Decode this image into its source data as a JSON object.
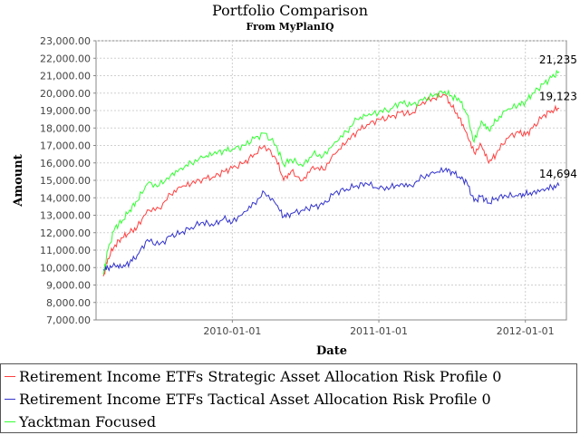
{
  "chart_data": {
    "type": "line",
    "title": "Portfolio Comparison",
    "subtitle": "From MyPlanIQ",
    "xlabel": "Date",
    "ylabel": "Amount",
    "ylim": [
      7000,
      23000
    ],
    "yticks": [
      7000,
      8000,
      9000,
      10000,
      11000,
      12000,
      13000,
      14000,
      15000,
      16000,
      17000,
      18000,
      19000,
      20000,
      21000,
      22000,
      23000
    ],
    "ytick_labels": [
      "7,000.00",
      "8,000.00",
      "9,000.00",
      "10,000.00",
      "11,000.00",
      "12,000.00",
      "13,000.00",
      "14,000.00",
      "15,000.00",
      "16,000.00",
      "17,000.00",
      "18,000.00",
      "19,000.00",
      "20,000.00",
      "21,000.00",
      "22,000.00",
      "23,000.00"
    ],
    "xlim": [
      2009.07,
      2012.28
    ],
    "xticks": [
      2010.0,
      2011.0,
      2012.0
    ],
    "xtick_labels": [
      "2010-01-01",
      "2011-01-01",
      "2012-01-01"
    ],
    "grid": true,
    "legend_position": "bottom",
    "series": [
      {
        "name": "Retirement Income ETFs Strategic Asset Allocation Risk Profile 0",
        "color": "#ff4040",
        "end_label": "19,123",
        "x": [
          2009.12,
          2009.15,
          2009.2,
          2009.25,
          2009.3,
          2009.35,
          2009.42,
          2009.5,
          2009.58,
          2009.65,
          2009.72,
          2009.8,
          2009.87,
          2009.94,
          2010.0,
          2010.08,
          2010.15,
          2010.22,
          2010.3,
          2010.35,
          2010.4,
          2010.48,
          2010.55,
          2010.62,
          2010.7,
          2010.78,
          2010.85,
          2010.92,
          2011.0,
          2011.08,
          2011.15,
          2011.22,
          2011.3,
          2011.38,
          2011.45,
          2011.5,
          2011.55,
          2011.6,
          2011.65,
          2011.7,
          2011.75,
          2011.8,
          2011.87,
          2011.95,
          2012.0,
          2012.05,
          2012.12,
          2012.18,
          2012.23
        ],
        "values": [
          9500,
          10500,
          11300,
          11700,
          12000,
          12300,
          13300,
          13400,
          14200,
          14600,
          14800,
          15100,
          15200,
          15500,
          15700,
          16000,
          16500,
          17000,
          16200,
          15000,
          15500,
          15000,
          15800,
          15600,
          16500,
          17200,
          17800,
          18200,
          18500,
          18600,
          18900,
          18800,
          19500,
          19700,
          19900,
          19200,
          18600,
          17700,
          16600,
          17000,
          16000,
          16500,
          17400,
          17800,
          17600,
          18000,
          18700,
          19000,
          19123
        ]
      },
      {
        "name": "Retirement Income ETFs Tactical Asset Allocation Risk Profile 0",
        "color": "#3333cc",
        "end_label": "14,694",
        "x": [
          2009.12,
          2009.15,
          2009.2,
          2009.25,
          2009.3,
          2009.35,
          2009.42,
          2009.5,
          2009.58,
          2009.65,
          2009.72,
          2009.8,
          2009.87,
          2009.94,
          2010.0,
          2010.08,
          2010.15,
          2010.22,
          2010.3,
          2010.35,
          2010.4,
          2010.48,
          2010.55,
          2010.62,
          2010.7,
          2010.78,
          2010.85,
          2010.92,
          2011.0,
          2011.08,
          2011.15,
          2011.22,
          2011.3,
          2011.38,
          2011.45,
          2011.5,
          2011.55,
          2011.6,
          2011.65,
          2011.7,
          2011.75,
          2011.8,
          2011.87,
          2011.95,
          2012.0,
          2012.05,
          2012.12,
          2012.18,
          2012.23
        ],
        "values": [
          9900,
          10000,
          10100,
          10000,
          10300,
          10700,
          11600,
          11300,
          11800,
          12000,
          12300,
          12600,
          12400,
          12800,
          12600,
          13200,
          13700,
          14300,
          13600,
          12900,
          13100,
          13300,
          13500,
          13600,
          14300,
          14500,
          14700,
          14800,
          14500,
          14600,
          14800,
          14700,
          15200,
          15400,
          15600,
          15500,
          15200,
          14900,
          13800,
          14100,
          13700,
          14000,
          14100,
          14100,
          14200,
          14300,
          14500,
          14600,
          14694
        ]
      },
      {
        "name": "Yacktman Focused",
        "color": "#33ff33",
        "end_label": "21,235",
        "x": [
          2009.12,
          2009.15,
          2009.2,
          2009.25,
          2009.3,
          2009.35,
          2009.42,
          2009.5,
          2009.58,
          2009.65,
          2009.72,
          2009.8,
          2009.87,
          2009.94,
          2010.0,
          2010.08,
          2010.15,
          2010.22,
          2010.3,
          2010.35,
          2010.4,
          2010.48,
          2010.55,
          2010.62,
          2010.7,
          2010.78,
          2010.85,
          2010.92,
          2011.0,
          2011.08,
          2011.15,
          2011.22,
          2011.3,
          2011.38,
          2011.45,
          2011.5,
          2011.55,
          2011.6,
          2011.65,
          2011.7,
          2011.75,
          2011.8,
          2011.87,
          2011.95,
          2012.0,
          2012.05,
          2012.12,
          2012.18,
          2012.23
        ],
        "values": [
          9600,
          11000,
          12300,
          12700,
          13300,
          13800,
          14800,
          14700,
          15300,
          15700,
          16000,
          16300,
          16500,
          16700,
          16800,
          17000,
          17400,
          17700,
          17000,
          15900,
          16200,
          15800,
          16500,
          16400,
          17200,
          17800,
          18500,
          18700,
          18900,
          19100,
          19500,
          19300,
          19600,
          19900,
          20100,
          19800,
          19600,
          18800,
          17200,
          18400,
          17900,
          18400,
          19000,
          19300,
          19500,
          20000,
          20500,
          20900,
          21235
        ]
      }
    ]
  }
}
